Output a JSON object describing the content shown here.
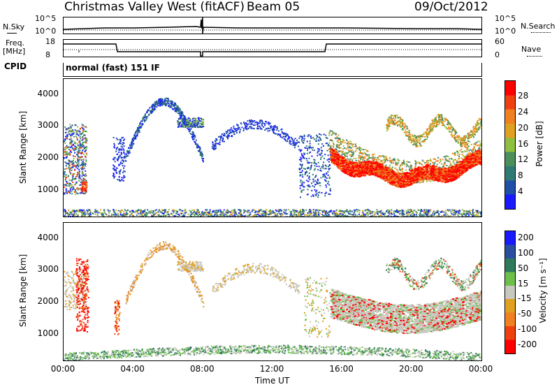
{
  "header": {
    "station": "Christmas Valley West (fitACF)",
    "beam": "Beam 05",
    "date": "09/Oct/2012"
  },
  "params": {
    "nsky_label": "N.Sky",
    "nsky_ticks": [
      "10^5",
      "10^0"
    ],
    "nsearch_label": "N.Search",
    "nsearch_ticks": [
      "10^5",
      "10^0"
    ],
    "freq_label_1": "Freq.",
    "freq_label_2": "[MHz]",
    "freq_ticks": [
      "18",
      "8"
    ],
    "nave_label": "Nave",
    "nave_ticks": [
      "60",
      "0"
    ],
    "cpid_label": "CPID",
    "cpid_value": "normal (fast) 151 IF"
  },
  "chart_data": [
    {
      "type": "heatmap",
      "name": "power",
      "ylabel": "Slant Range [km]",
      "yticks": [
        "4000",
        "3000",
        "2000",
        "1000"
      ],
      "ylim": [
        180,
        4500
      ],
      "colorbar_label": "Power [dB]",
      "colorbar_ticks": [
        "28",
        "24",
        "20",
        "16",
        "12",
        "8",
        "4"
      ],
      "colorbar_colors": [
        "#1a1aff",
        "#1f4fa8",
        "#2f7a74",
        "#4b8f5c",
        "#8fbf3f",
        "#e0a020",
        "#f08020",
        "#f04010",
        "#ff0000"
      ],
      "regions": [
        {
          "x": [
            0.0,
            1.2
          ],
          "y": [
            1000,
            3000
          ],
          "level": "mixed"
        },
        {
          "x": [
            15.2,
            22.0
          ],
          "y": [
            1200,
            2700
          ],
          "level": "high"
        },
        {
          "x": [
            16.0,
            24.0
          ],
          "y": [
            180,
            400
          ],
          "level": "low"
        }
      ]
    },
    {
      "type": "heatmap",
      "name": "velocity",
      "ylabel": "Slant Range [km]",
      "yticks": [
        "4000",
        "3000",
        "2000",
        "1000"
      ],
      "ylim": [
        180,
        4500
      ],
      "colorbar_label": "Velocity [m s⁻¹]",
      "colorbar_ticks": [
        "200",
        "100",
        "50",
        "15",
        "-15",
        "-50",
        "-100",
        "-200"
      ],
      "colorbar_colors": [
        "#1a1aff",
        "#2a4fa0",
        "#2f7a5c",
        "#6cc04a",
        "#c8c8c0",
        "#e0a020",
        "#f08020",
        "#f04010",
        "#ff0000"
      ],
      "xlabel": "Time UT",
      "xticks": [
        "00:00",
        "04:00",
        "08:00",
        "12:00",
        "16:00",
        "20:00",
        "00:00"
      ]
    }
  ]
}
